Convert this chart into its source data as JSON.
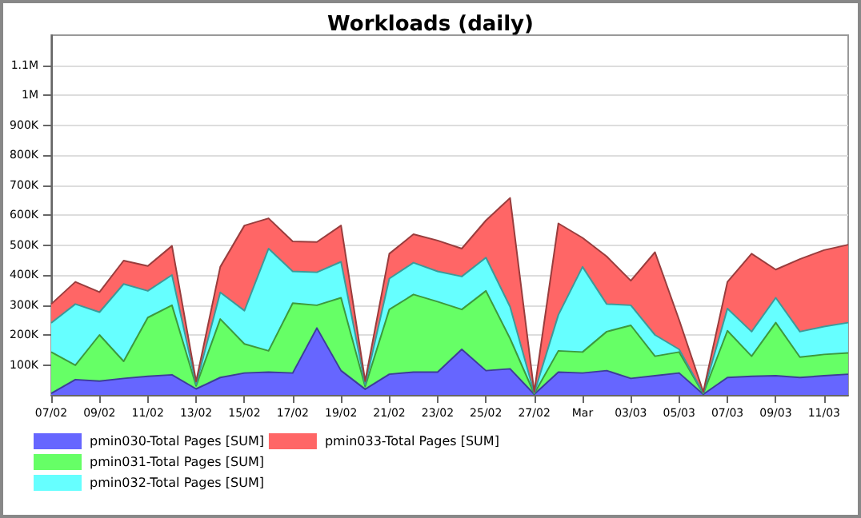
{
  "chart_data": {
    "type": "area",
    "title": "Workloads (daily)",
    "stacked": true,
    "grid": "y",
    "legend": "bottom left",
    "marker": "none",
    "categories": [
      "07/02",
      null,
      "09/02",
      null,
      "11/02",
      null,
      "13/02",
      null,
      "15/02",
      null,
      "17/02",
      null,
      "19/02",
      null,
      "21/02",
      null,
      "23/02",
      null,
      "25/02",
      null,
      "27/02",
      null,
      "Mar",
      null,
      "03/03",
      null,
      "05/03",
      null,
      "07/03",
      null,
      "09/03",
      null,
      "11/03",
      null
    ],
    "ylim": [
      0,
      1200000
    ],
    "yticks": [
      {
        "value": 100000,
        "label": "100K"
      },
      {
        "value": 200000,
        "label": "200K"
      },
      {
        "value": 300000,
        "label": "300K"
      },
      {
        "value": 400000,
        "label": "400K"
      },
      {
        "value": 500000,
        "label": "500K"
      },
      {
        "value": 600000,
        "label": "600K"
      },
      {
        "value": 700000,
        "label": "700K"
      },
      {
        "value": 800000,
        "label": "800K"
      },
      {
        "value": 900000,
        "label": "900K"
      },
      {
        "value": 1000000,
        "label": "1M"
      },
      {
        "value": 1100000,
        "label": "1.1M"
      }
    ],
    "series": [
      {
        "name": "pmin030-Total Pages [SUM]",
        "color": "#6666ff",
        "values": [
          5000,
          51000,
          46000,
          55000,
          62000,
          67000,
          20000,
          58000,
          73000,
          76000,
          73000,
          223000,
          81000,
          19000,
          69000,
          76000,
          76000,
          152000,
          81000,
          87000,
          2000,
          76000,
          73000,
          81000,
          55000,
          64000,
          73000,
          2000,
          58000,
          62000,
          64000,
          58000,
          64000,
          69000
        ]
      },
      {
        "name": "pmin031-Total Pages [SUM]",
        "color": "#66ff66",
        "values": [
          138000,
          48000,
          154000,
          57000,
          196000,
          232000,
          10000,
          195000,
          97000,
          71000,
          233000,
          76000,
          243000,
          9000,
          216000,
          259000,
          235000,
          133000,
          266000,
          101000,
          2000,
          71000,
          70000,
          130000,
          177000,
          65000,
          70000,
          2000,
          156000,
          67000,
          177000,
          68000,
          71000,
          71000
        ]
      },
      {
        "name": "pmin032-Total Pages [SUM]",
        "color": "#66ffff",
        "values": [
          97000,
          204000,
          76000,
          258000,
          89000,
          101000,
          5000,
          89000,
          111000,
          341000,
          106000,
          110000,
          120000,
          6000,
          103000,
          106000,
          101000,
          110000,
          111000,
          106000,
          2000,
          120000,
          284000,
          92000,
          67000,
          71000,
          9000,
          2000,
          74000,
          82000,
          83000,
          85000,
          93000,
          101000
        ]
      },
      {
        "name": "pmin033-Total Pages [SUM]",
        "color": "#ff6666",
        "values": [
          63000,
          74000,
          67000,
          78000,
          83000,
          97000,
          10000,
          85000,
          284000,
          101000,
          100000,
          101000,
          121000,
          12000,
          83000,
          95000,
          103000,
          93000,
          124000,
          363000,
          4000,
          305000,
          97000,
          159000,
          82000,
          276000,
          98000,
          4000,
          89000,
          260000,
          94000,
          242000,
          255000,
          260000
        ]
      }
    ]
  }
}
